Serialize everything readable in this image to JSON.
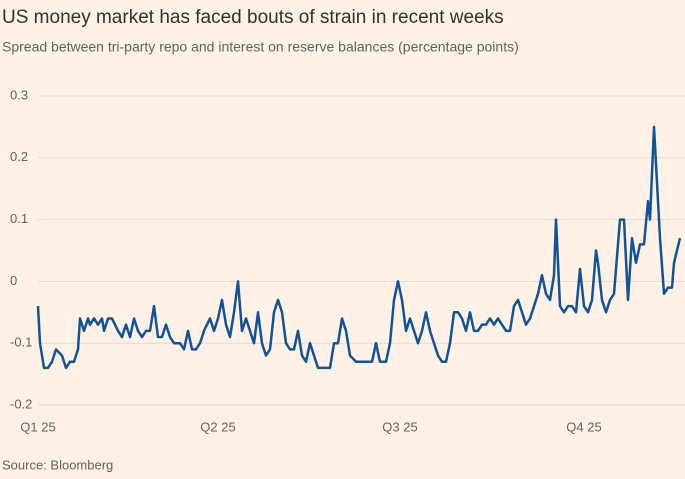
{
  "chart_data": {
    "type": "line",
    "title": "US money market has faced bouts of strain in recent weeks",
    "subtitle": "Spread between tri-party repo and interest on reserve balances (percentage points)",
    "source": "Source: Bloomberg",
    "x": [
      0,
      1,
      3,
      5,
      7,
      9,
      12,
      14,
      16,
      18,
      20,
      21,
      23,
      25,
      26,
      28,
      30,
      32,
      33,
      35,
      37,
      40,
      42,
      44,
      46,
      48,
      50,
      52,
      54,
      56,
      58,
      60,
      62,
      64,
      66,
      68,
      71,
      73,
      75,
      77,
      79,
      81,
      83,
      86,
      88,
      90,
      92,
      94,
      96,
      98,
      100,
      102,
      104,
      106,
      108,
      110,
      112,
      114,
      116,
      118,
      120,
      122,
      124,
      126,
      128,
      130,
      132,
      134,
      136,
      138,
      140,
      143,
      146,
      148,
      150,
      152,
      154,
      156,
      159,
      162,
      165,
      167,
      169,
      171,
      174,
      176,
      178,
      180,
      182,
      184,
      186,
      188,
      190,
      192,
      194,
      196,
      198,
      200,
      202,
      204,
      206,
      208,
      210,
      212,
      214,
      216,
      218,
      220,
      222,
      224,
      226,
      228,
      230,
      232,
      234,
      236,
      238,
      240,
      242,
      244,
      246,
      248,
      250,
      252,
      254,
      256,
      258,
      259,
      261,
      263,
      265,
      267,
      269,
      271,
      273,
      275,
      277,
      279,
      280,
      282,
      284,
      286,
      288,
      291,
      293,
      295,
      297,
      299,
      301,
      303,
      305,
      306,
      308,
      309,
      311,
      313,
      315,
      317,
      318,
      321
    ],
    "series": [
      {
        "name": "Spread",
        "color": "#0f5499",
        "values": [
          -0.04,
          -0.1,
          -0.14,
          -0.14,
          -0.13,
          -0.11,
          -0.12,
          -0.14,
          -0.13,
          -0.13,
          -0.11,
          -0.06,
          -0.08,
          -0.06,
          -0.07,
          -0.06,
          -0.07,
          -0.06,
          -0.08,
          -0.06,
          -0.06,
          -0.08,
          -0.09,
          -0.07,
          -0.09,
          -0.06,
          -0.08,
          -0.09,
          -0.08,
          -0.08,
          -0.04,
          -0.09,
          -0.09,
          -0.07,
          -0.09,
          -0.1,
          -0.1,
          -0.11,
          -0.08,
          -0.11,
          -0.11,
          -0.1,
          -0.08,
          -0.06,
          -0.08,
          -0.06,
          -0.03,
          -0.07,
          -0.09,
          -0.05,
          0,
          -0.08,
          -0.06,
          -0.08,
          -0.1,
          -0.05,
          -0.1,
          -0.12,
          -0.11,
          -0.05,
          -0.03,
          -0.05,
          -0.1,
          -0.11,
          -0.11,
          -0.08,
          -0.12,
          -0.13,
          -0.1,
          -0.12,
          -0.14,
          -0.14,
          -0.14,
          -0.1,
          -0.1,
          -0.06,
          -0.08,
          -0.12,
          -0.13,
          -0.13,
          -0.13,
          -0.13,
          -0.1,
          -0.13,
          -0.13,
          -0.1,
          -0.03,
          0,
          -0.03,
          -0.08,
          -0.06,
          -0.08,
          -0.1,
          -0.08,
          -0.05,
          -0.08,
          -0.1,
          -0.12,
          -0.13,
          -0.13,
          -0.1,
          -0.05,
          -0.05,
          -0.06,
          -0.08,
          -0.05,
          -0.08,
          -0.08,
          -0.07,
          -0.07,
          -0.06,
          -0.07,
          -0.06,
          -0.07,
          -0.08,
          -0.08,
          -0.04,
          -0.03,
          -0.05,
          -0.07,
          -0.06,
          -0.04,
          -0.02,
          0.01,
          -0.02,
          -0.03,
          0.01,
          0.1,
          -0.04,
          -0.05,
          -0.04,
          -0.04,
          -0.05,
          0.02,
          -0.04,
          -0.05,
          -0.03,
          0.05,
          0.03,
          -0.03,
          -0.05,
          -0.03,
          -0.02,
          0.1,
          0.1,
          -0.03,
          0.07,
          0.03,
          0.06,
          0.06,
          0.13,
          0.1,
          0.25,
          0.19,
          0.07,
          -0.02,
          -0.01,
          -0.01,
          0.03,
          0.07
        ]
      }
    ],
    "xlim": [
      0,
      321
    ],
    "xticks": [
      {
        "value": 0,
        "label": "Q1 25"
      },
      {
        "value": 90,
        "label": "Q2 25"
      },
      {
        "value": 181,
        "label": "Q3 25"
      },
      {
        "value": 273,
        "label": "Q4 25"
      }
    ],
    "ylim": [
      -0.2,
      0.3
    ],
    "yticks": [
      0.3,
      0.2,
      0.1,
      0,
      -0.1,
      -0.2
    ],
    "grid": true
  }
}
